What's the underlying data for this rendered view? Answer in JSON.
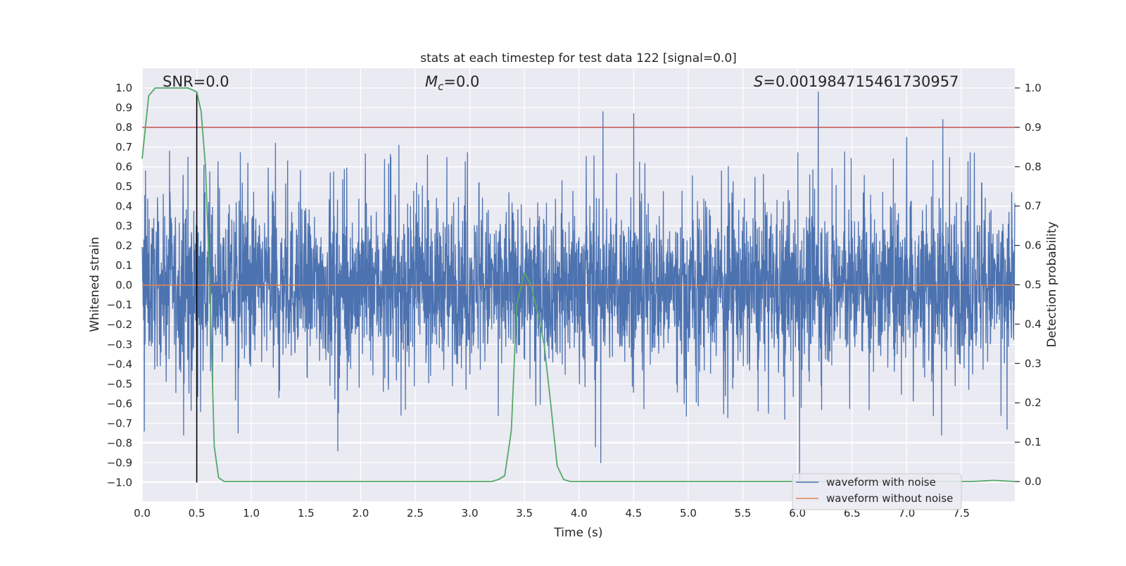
{
  "chart_data": {
    "type": "line",
    "title": "stats at each timestep for test data 122 [signal=0.0]",
    "xlabel": "Time (s)",
    "ylabel": "Whitened strain",
    "y2label": "Detection probability",
    "xlim": [
      0,
      7.99
    ],
    "ylim": [
      -1.095,
      1.1
    ],
    "y2lim": [
      -0.05,
      1.05
    ],
    "xticks": [
      "0.0",
      "0.5",
      "1.0",
      "1.5",
      "2.0",
      "2.5",
      "3.0",
      "3.5",
      "4.0",
      "4.5",
      "5.0",
      "5.5",
      "6.0",
      "6.5",
      "7.0",
      "7.5"
    ],
    "yticks": [
      "1.0",
      "0.9",
      "0.8",
      "0.7",
      "0.6",
      "0.5",
      "0.4",
      "0.3",
      "0.2",
      "0.1",
      "0.0",
      "−0.1",
      "−0.2",
      "−0.3",
      "−0.4",
      "−0.5",
      "−0.6",
      "−0.7",
      "−0.8",
      "−0.9",
      "−1.0"
    ],
    "y2ticks": [
      "1.0",
      "0.9",
      "0.8",
      "0.7",
      "0.6",
      "0.5",
      "0.4",
      "0.3",
      "0.2",
      "0.1",
      "0.0"
    ],
    "grid": true,
    "legend_position": "lower-right",
    "annotations": {
      "snr": "SNR=0.0",
      "mc_symbol": "M",
      "mc_sub": "c",
      "mc_value": "=0.0",
      "s_symbol": "S",
      "s_value": "=0.001984715461730957"
    },
    "series": [
      {
        "name": "waveform with noise",
        "axis": "left",
        "color": "#4c72b0",
        "description_type": "dense-noise",
        "peaks_positive": [
          {
            "x": 0.03,
            "y": 0.58
          },
          {
            "x": 0.25,
            "y": 0.68
          },
          {
            "x": 0.42,
            "y": 0.65
          },
          {
            "x": 1.22,
            "y": 0.72
          },
          {
            "x": 2.35,
            "y": 0.71
          },
          {
            "x": 4.15,
            "y": 0.78
          },
          {
            "x": 4.22,
            "y": 0.88
          },
          {
            "x": 4.5,
            "y": 0.87
          },
          {
            "x": 6.19,
            "y": 0.98
          },
          {
            "x": 7.0,
            "y": 0.75
          },
          {
            "x": 7.33,
            "y": 0.84
          },
          {
            "x": 7.62,
            "y": 0.67
          }
        ],
        "peaks_negative": [
          {
            "x": 0.02,
            "y": -0.74
          },
          {
            "x": 0.38,
            "y": -0.76
          },
          {
            "x": 0.88,
            "y": -0.75
          },
          {
            "x": 1.79,
            "y": -0.84
          },
          {
            "x": 4.15,
            "y": -0.82
          },
          {
            "x": 4.2,
            "y": -0.9
          },
          {
            "x": 6.02,
            "y": -1.0
          },
          {
            "x": 7.32,
            "y": -0.76
          },
          {
            "x": 7.92,
            "y": -0.73
          }
        ]
      },
      {
        "name": "waveform without noise",
        "axis": "left",
        "color": "#dd8452",
        "x": [
          0.0,
          7.99
        ],
        "y": [
          0.0,
          0.0
        ]
      },
      {
        "name": "",
        "axis": "right",
        "color": "#55a868",
        "x": [
          0.0,
          0.06,
          0.12,
          0.2,
          0.3,
          0.42,
          0.5,
          0.54,
          0.58,
          0.62,
          0.66,
          0.7,
          0.75,
          1.0,
          2.0,
          2.4,
          2.6,
          3.0,
          3.2,
          3.26,
          3.32,
          3.38,
          3.43,
          3.5,
          3.56,
          3.62,
          3.68,
          3.74,
          3.8,
          3.86,
          3.92,
          4.2,
          5.0,
          6.0,
          7.0,
          7.6,
          7.8,
          7.99
        ],
        "y": [
          0.82,
          0.98,
          1.0,
          1.0,
          1.0,
          1.0,
          0.99,
          0.94,
          0.8,
          0.5,
          0.09,
          0.01,
          0.0,
          0.0,
          0.0,
          0.0,
          0.0,
          0.0,
          0.0,
          0.005,
          0.015,
          0.13,
          0.45,
          0.53,
          0.5,
          0.43,
          0.35,
          0.2,
          0.04,
          0.005,
          0.0,
          0.0,
          0.0,
          0.0,
          0.0,
          0.0,
          0.003,
          0.0
        ]
      }
    ],
    "hlines": [
      {
        "name": "threshold",
        "axis": "right",
        "y": 0.9,
        "color": "#c44e52"
      }
    ],
    "vlines": [
      {
        "name": "marker",
        "x": 0.5,
        "y_from": -1.0,
        "y_to": 0.98,
        "color": "#000000"
      }
    ]
  }
}
